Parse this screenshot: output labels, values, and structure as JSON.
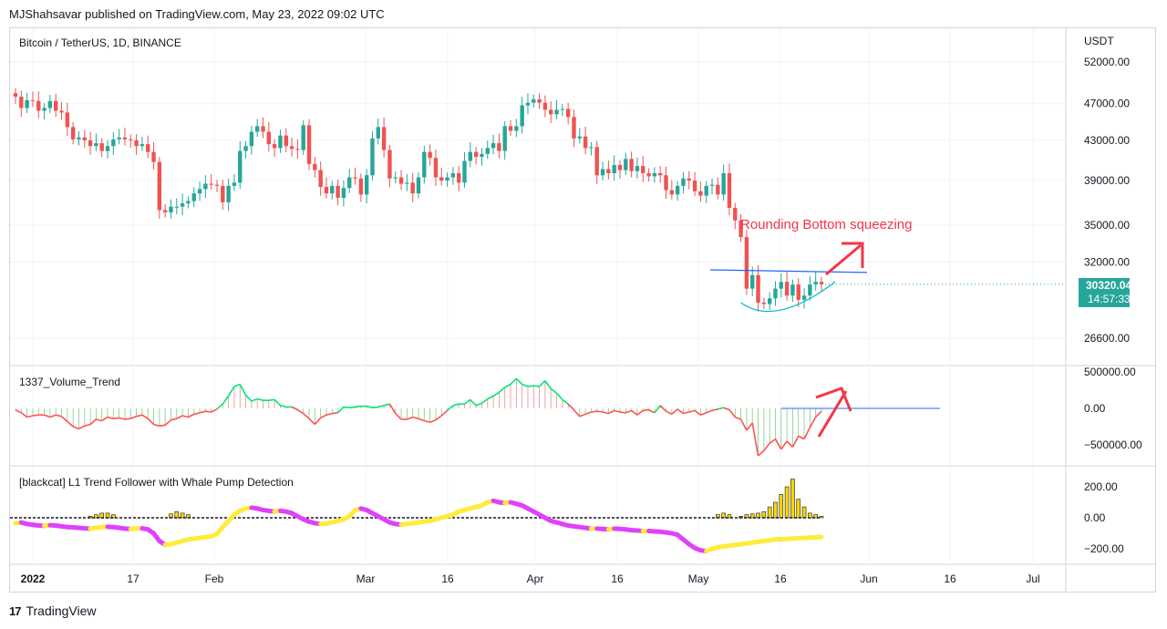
{
  "header": "MJShahsavar published on TradingView.com, May 23, 2022 09:02 UTC",
  "footer": {
    "logo_mark": "17",
    "brand": "TradingView"
  },
  "colors": {
    "up": "#26a69a",
    "down": "#ef5350",
    "blue_line": "#2962ff",
    "cyan_curve": "#00bcd4",
    "arrow": "#f23645",
    "trend_up": "#00e676",
    "trend_down": "#ff5252",
    "yellow": "#ffeb3b",
    "magenta": "#e040fb",
    "whale_bar": "#ffd600"
  },
  "chart_data": [
    {
      "type": "candlestick",
      "title": "Bitcoin / TetherUS, 1D, BINANCE",
      "axis_unit": "USDT",
      "y_ticks": [
        "52000.00",
        "47000.00",
        "43000.00",
        "39000.00",
        "35000.00",
        "32000.00",
        "26600.00"
      ],
      "y_tick_values": [
        52000,
        47000,
        43000,
        39000,
        35000,
        32000,
        26600
      ],
      "x_ticks": [
        "2022",
        "17",
        "Feb",
        "Mar",
        "16",
        "Apr",
        "16",
        "May",
        "16",
        "Jun",
        "16",
        "Jul"
      ],
      "last_price": "30320.04",
      "countdown": "14:57:33",
      "annotation": "Rounding Bottom squeezing",
      "resistance_level": 31400,
      "series_close": [
        47800,
        46500,
        47400,
        47300,
        46200,
        46500,
        47300,
        46200,
        46000,
        44400,
        43100,
        43300,
        43000,
        42400,
        42700,
        41900,
        42400,
        43100,
        43300,
        43100,
        43000,
        42400,
        42600,
        41800,
        40800,
        36300,
        36100,
        36600,
        36600,
        36900,
        37100,
        37800,
        38200,
        38700,
        38600,
        38500,
        37000,
        38500,
        38800,
        41900,
        42400,
        43900,
        44500,
        43900,
        42600,
        42200,
        43500,
        42400,
        42100,
        42000,
        44600,
        40600,
        40000,
        38400,
        37800,
        38500,
        37400,
        38300,
        39300,
        39200,
        37700,
        39500,
        43200,
        44400,
        42000,
        39200,
        39300,
        38700,
        38800,
        37800,
        39300,
        41800,
        41200,
        39300,
        39000,
        39300,
        39700,
        38800,
        40900,
        41800,
        41300,
        41600,
        42200,
        42700,
        41900,
        44500,
        44000,
        44500,
        46800,
        47100,
        47500,
        47100,
        46300,
        45800,
        46300,
        46400,
        45500,
        43200,
        43400,
        42200,
        42300,
        39500,
        40100,
        39700,
        40500,
        40000,
        41100,
        39900,
        40400,
        39700,
        39400,
        39700,
        39500,
        38100,
        37700,
        38500,
        39200,
        39000,
        38000,
        37600,
        38500,
        38600,
        37700,
        39700,
        36500,
        35400,
        34000,
        30000,
        31000,
        29000,
        28900,
        29300,
        30000,
        30500,
        29500,
        30300,
        29200,
        29500,
        30300,
        30500,
        30320
      ]
    },
    {
      "type": "line",
      "title": "1337_Volume_Trend",
      "y_ticks": [
        "500000.00",
        "0.00",
        "−500000.00"
      ],
      "y_tick_values": [
        500000,
        0,
        -500000
      ],
      "values": [
        -20000,
        -60000,
        -120000,
        -100000,
        -90000,
        -90000,
        -120000,
        -90000,
        -110000,
        -180000,
        -250000,
        -280000,
        -240000,
        -220000,
        -150000,
        -170000,
        -120000,
        -140000,
        -130000,
        -150000,
        -140000,
        -110000,
        -90000,
        -140000,
        -220000,
        -240000,
        -230000,
        -160000,
        -140000,
        -100000,
        -120000,
        -80000,
        -60000,
        -40000,
        -50000,
        -10000,
        60000,
        170000,
        300000,
        330000,
        180000,
        100000,
        130000,
        110000,
        110000,
        120000,
        40000,
        20000,
        20000,
        -20000,
        -70000,
        -140000,
        -220000,
        -130000,
        -90000,
        -70000,
        -60000,
        20000,
        10000,
        20000,
        30000,
        30000,
        10000,
        20000,
        40000,
        60000,
        -70000,
        -150000,
        -150000,
        -120000,
        -140000,
        -170000,
        -190000,
        -160000,
        -100000,
        -30000,
        40000,
        60000,
        60000,
        120000,
        40000,
        70000,
        130000,
        170000,
        220000,
        290000,
        330000,
        410000,
        330000,
        300000,
        310000,
        300000,
        380000,
        270000,
        210000,
        120000,
        60000,
        -20000,
        -110000,
        -80000,
        -50000,
        -40000,
        -50000,
        -70000,
        -30000,
        -50000,
        -60000,
        -30000,
        -90000,
        -30000,
        -20000,
        -60000,
        40000,
        -40000,
        -80000,
        -10000,
        -70000,
        -50000,
        -30000,
        -90000,
        -60000,
        -30000,
        -10000,
        10000,
        -20000,
        -120000,
        -150000,
        -300000,
        -200000,
        -650000,
        -580000,
        -480000,
        -420000,
        -560000,
        -450000,
        -530000,
        -380000,
        -420000,
        -260000,
        -120000,
        -40000
      ]
    },
    {
      "type": "area",
      "title": "[blackcat] L1 Trend Follower with Whale Pump Detection",
      "y_ticks": [
        "200.00",
        "0.00",
        "−200.00"
      ],
      "y_tick_values": [
        200,
        0,
        -200
      ],
      "trend_line": [
        -35,
        -30,
        -40,
        -45,
        -50,
        -52,
        -48,
        -50,
        -55,
        -60,
        -62,
        -65,
        -68,
        -70,
        -65,
        -60,
        -58,
        -60,
        -65,
        -70,
        -72,
        -70,
        -68,
        -75,
        -100,
        -150,
        -175,
        -170,
        -160,
        -150,
        -140,
        -135,
        -130,
        -125,
        -120,
        -105,
        -60,
        -20,
        20,
        45,
        60,
        65,
        60,
        50,
        45,
        40,
        45,
        40,
        30,
        10,
        -10,
        -25,
        -35,
        -40,
        -38,
        -30,
        -20,
        -10,
        10,
        50,
        60,
        50,
        30,
        10,
        -10,
        -30,
        -40,
        -45,
        -40,
        -35,
        -30,
        -25,
        -20,
        -10,
        0,
        10,
        20,
        40,
        50,
        60,
        70,
        80,
        100,
        110,
        100,
        95,
        100,
        90,
        80,
        60,
        40,
        20,
        0,
        -20,
        -30,
        -40,
        -50,
        -55,
        -60,
        -65,
        -70,
        -70,
        -72,
        -75,
        -70,
        -72,
        -75,
        -80,
        -82,
        -85,
        -85,
        -88,
        -90,
        -95,
        -100,
        -110,
        -140,
        -170,
        -195,
        -210,
        -215,
        -200,
        -190,
        -185,
        -180,
        -175,
        -170,
        -165,
        -160,
        -155,
        -150,
        -145,
        -140,
        -138,
        -136,
        -134,
        -132,
        -130,
        -128,
        -126,
        -124
      ],
      "whale_bars": [
        0,
        0,
        0,
        0,
        0,
        0,
        0,
        0,
        0,
        0,
        0,
        0,
        0,
        10,
        20,
        30,
        30,
        20,
        0,
        0,
        0,
        0,
        0,
        0,
        0,
        0,
        0,
        25,
        40,
        30,
        20,
        0,
        0,
        0,
        0,
        0,
        0,
        0,
        0,
        0,
        0,
        0,
        0,
        0,
        0,
        0,
        0,
        0,
        0,
        0,
        0,
        0,
        0,
        0,
        0,
        0,
        0,
        0,
        0,
        0,
        0,
        0,
        0,
        0,
        0,
        0,
        0,
        0,
        0,
        0,
        0,
        0,
        0,
        0,
        0,
        0,
        0,
        0,
        0,
        0,
        0,
        0,
        0,
        0,
        0,
        0,
        0,
        0,
        0,
        0,
        0,
        0,
        0,
        0,
        0,
        0,
        0,
        0,
        0,
        0,
        0,
        0,
        0,
        0,
        0,
        0,
        0,
        0,
        0,
        0,
        0,
        0,
        0,
        0,
        0,
        0,
        0,
        0,
        0,
        0,
        0,
        0,
        20,
        30,
        20,
        0,
        10,
        20,
        25,
        30,
        40,
        70,
        100,
        150,
        200,
        250,
        120,
        70,
        30,
        20,
        10
      ]
    }
  ]
}
